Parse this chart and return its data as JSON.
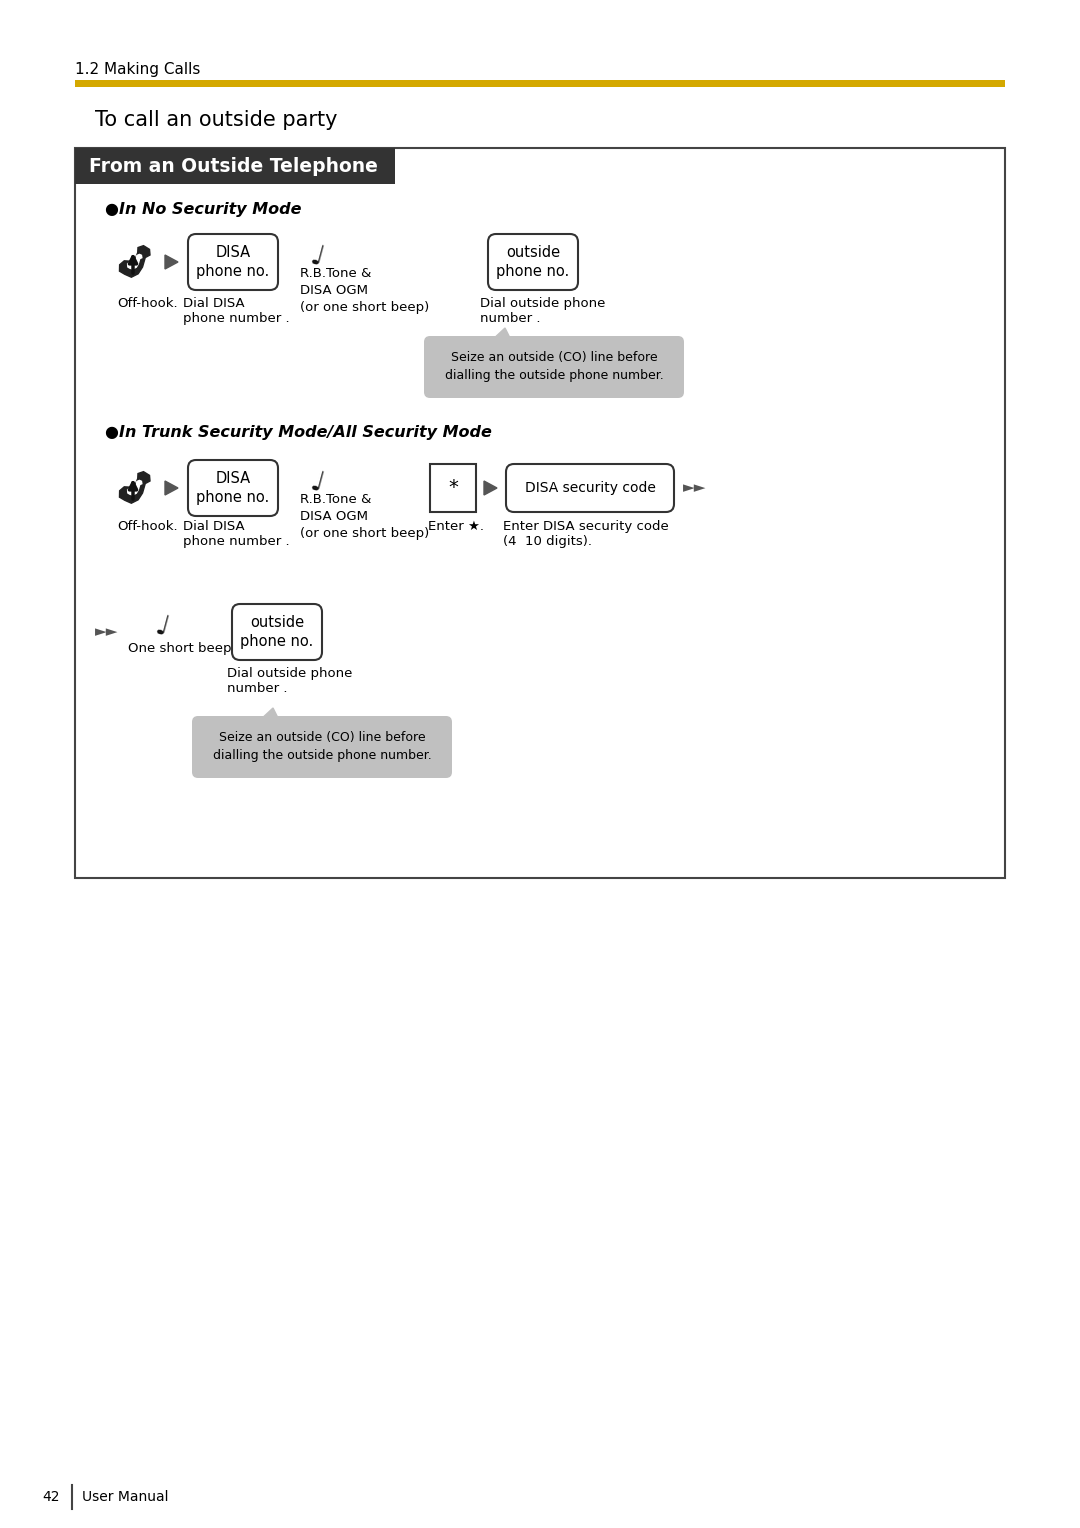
{
  "page_bg": "#ffffff",
  "section_header": "1.2 Making Calls",
  "gold_bar_color": "#D4A800",
  "title": "To call an outside party",
  "box_title": "From an Outside Telephone",
  "box_title_bg": "#333333",
  "box_title_fg": "#ffffff",
  "box_border": "#555555",
  "mode1_label": "●In No Security Mode",
  "mode2_label": "●In Trunk Security Mode/All Security Mode",
  "disa_box_text": "DISA\nphone no.",
  "outside_box_text": "outside\nphone no.",
  "disa_security_box_text": "DISA security code",
  "rbtone_text": "R.B.Tone &\nDISA OGM\n(or one short beep)",
  "offhook_label": "Off-hook.",
  "dial_disa_label": "Dial DISA\nphone number .",
  "dial_outside_label": "Dial outside phone\nnumber .",
  "seize_note": "Seize an outside (CO) line before\ndialling the outside phone number.",
  "enter_star_label": "Enter ★.",
  "enter_disa_sec_label": "Enter DISA security code\n(4  10 digits).",
  "one_short_beep_label": "One short beep",
  "note_bg": "#c0c0c0",
  "footer_num": "42",
  "footer_text": "User Manual"
}
